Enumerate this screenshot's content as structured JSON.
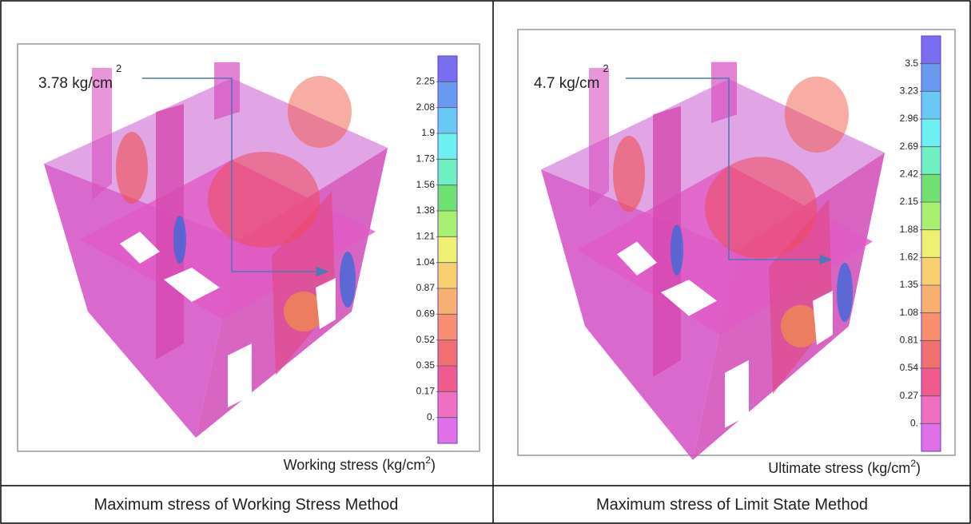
{
  "panels": [
    {
      "annotation": {
        "text": "3.78 kg/cm",
        "superscript": "2"
      },
      "legend": [
        "2.25",
        "2.08",
        "1.9",
        "1.73",
        "1.56",
        "1.38",
        "1.21",
        "1.04",
        "0.87",
        "0.69",
        "0.52",
        "0.35",
        "0.17",
        "0."
      ],
      "axis_caption": {
        "text": "Working stress (kg/cm",
        "superscript": "2",
        "suffix": ")"
      },
      "caption": "Maximum stress of Working Stress Method"
    },
    {
      "annotation": {
        "text": "4.7 kg/cm",
        "superscript": "2"
      },
      "legend": [
        "3.5",
        "3.23",
        "2.96",
        "2.69",
        "2.42",
        "2.15",
        "1.88",
        "1.62",
        "1.35",
        "1.08",
        "0.81",
        "0.54",
        "0.27",
        "0."
      ],
      "axis_caption": {
        "text": "Ultimate stress (kg/cm",
        "superscript": "2",
        "suffix": ")"
      },
      "caption": "Maximum stress of Limit State Method"
    }
  ]
}
